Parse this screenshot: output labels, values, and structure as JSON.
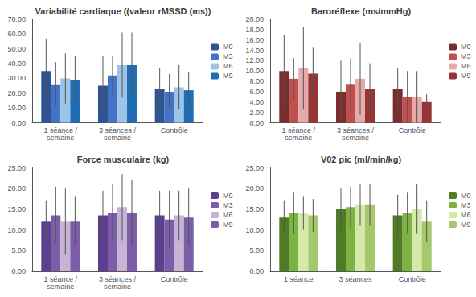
{
  "chart_data": [
    {
      "type": "bar",
      "title": "Variabilité cardiaque ((valeur rMSSD (ms))",
      "categories": [
        "1 séance /\nsemaine",
        "3 séances /\nsemaine",
        "Contrôle"
      ],
      "series": [
        {
          "name": "M0",
          "color": "#2E5496",
          "values": [
            35,
            25,
            23
          ],
          "errors": [
            22,
            20,
            14
          ]
        },
        {
          "name": "M3",
          "color": "#4472C4",
          "values": [
            26,
            32,
            21
          ],
          "errors": [
            15,
            13,
            12
          ]
        },
        {
          "name": "M6",
          "color": "#9DC3E6",
          "values": [
            30,
            39,
            24
          ],
          "errors": [
            17,
            22,
            15
          ]
        },
        {
          "name": "M9",
          "color": "#1F6DB5",
          "values": [
            29,
            39,
            22
          ],
          "errors": [
            16,
            22,
            12
          ]
        }
      ],
      "ylim": [
        0,
        70
      ],
      "yticks": [
        {
          "value": 0,
          "label": "0.00"
        },
        {
          "value": 10,
          "label": "10.00"
        },
        {
          "value": 20,
          "label": "20.00"
        },
        {
          "value": 30,
          "label": "30.00"
        },
        {
          "value": 40,
          "label": "40.00"
        },
        {
          "value": 50,
          "label": "50.00"
        },
        {
          "value": 60,
          "label": "60.00"
        },
        {
          "value": 70,
          "label": "70.00"
        }
      ],
      "grid": false,
      "legend": "right"
    },
    {
      "type": "bar",
      "title": "Baroréflexe (ms/mmHg)",
      "categories": [
        "1 séance /\nsemaine",
        "3 séances /\nsemaine",
        "Contrôle"
      ],
      "series": [
        {
          "name": "M0",
          "color": "#7B2C2C",
          "values": [
            10,
            6,
            6.5
          ],
          "errors": [
            7,
            6,
            4
          ]
        },
        {
          "name": "M3",
          "color": "#C0504D",
          "values": [
            8.5,
            7.5,
            5
          ],
          "errors": [
            4,
            5,
            5
          ]
        },
        {
          "name": "M6",
          "color": "#E6AAAA",
          "values": [
            10.5,
            8.5,
            5
          ],
          "errors": [
            8,
            7,
            5
          ]
        },
        {
          "name": "M9",
          "color": "#963535",
          "values": [
            9.5,
            6.5,
            4
          ],
          "errors": [
            5,
            5,
            1.5
          ]
        }
      ],
      "ylim": [
        0,
        20
      ],
      "yticks": [
        {
          "value": 0,
          "label": "0.00"
        },
        {
          "value": 2,
          "label": "2.00"
        },
        {
          "value": 4,
          "label": "4.00"
        },
        {
          "value": 6,
          "label": "6.00"
        },
        {
          "value": 8,
          "label": "8.00"
        },
        {
          "value": 10,
          "label": "10.00"
        },
        {
          "value": 12,
          "label": "12.00"
        },
        {
          "value": 14,
          "label": "14.00"
        },
        {
          "value": 16,
          "label": "16.00"
        },
        {
          "value": 18,
          "label": "18.00"
        },
        {
          "value": 20,
          "label": "20.00"
        }
      ],
      "grid": false,
      "legend": "right"
    },
    {
      "type": "bar",
      "title": "Force musculaire (kg)",
      "categories": [
        "1 séance /\nsemaine",
        "3 séances /\nsemaine",
        "Contrôle"
      ],
      "series": [
        {
          "name": "M0",
          "color": "#5C3F8F",
          "values": [
            12,
            13.5,
            13.5
          ],
          "errors": [
            5,
            6,
            6
          ]
        },
        {
          "name": "M3",
          "color": "#7B5EA7",
          "values": [
            13.5,
            14,
            12.5
          ],
          "errors": [
            7,
            7,
            7
          ]
        },
        {
          "name": "M6",
          "color": "#C5B4D4",
          "values": [
            12,
            15.5,
            13.5
          ],
          "errors": [
            8,
            8,
            6
          ]
        },
        {
          "name": "M9",
          "color": "#7B5EA7",
          "values": [
            12,
            14,
            13
          ],
          "errors": [
            6,
            8,
            7
          ]
        }
      ],
      "ylim": [
        0,
        25
      ],
      "yticks": [
        {
          "value": 0,
          "label": "0.00"
        },
        {
          "value": 5,
          "label": "5.00"
        },
        {
          "value": 10,
          "label": "10.00"
        },
        {
          "value": 15,
          "label": "15.00"
        },
        {
          "value": 20,
          "label": "20.00"
        },
        {
          "value": 25,
          "label": "25.00"
        }
      ],
      "grid": false,
      "legend": "right"
    },
    {
      "type": "bar",
      "title": "V02 pic (ml/min/kg)",
      "categories": [
        "1 séance",
        "3 séances",
        "Contrôle"
      ],
      "series": [
        {
          "name": "M0",
          "color": "#4F7B24",
          "values": [
            13,
            15,
            13.5
          ],
          "errors": [
            4,
            5,
            5
          ]
        },
        {
          "name": "M3",
          "color": "#7CB342",
          "values": [
            14,
            15.5,
            14
          ],
          "errors": [
            5,
            5,
            5
          ]
        },
        {
          "name": "M6",
          "color": "#D4E8A8",
          "values": [
            14,
            16,
            15
          ],
          "errors": [
            4,
            5,
            6
          ]
        },
        {
          "name": "M9",
          "color": "#A5C96A",
          "values": [
            13.5,
            16,
            12
          ],
          "errors": [
            4,
            5,
            5
          ]
        }
      ],
      "ylim": [
        0,
        25
      ],
      "yticks": [
        {
          "value": 0,
          "label": "0.00"
        },
        {
          "value": 5,
          "label": "5.00"
        },
        {
          "value": 10,
          "label": "10.00"
        },
        {
          "value": 15,
          "label": "15.00"
        },
        {
          "value": 20,
          "label": "20.00"
        },
        {
          "value": 25,
          "label": "25.00"
        }
      ],
      "grid": false,
      "legend": "right"
    }
  ]
}
